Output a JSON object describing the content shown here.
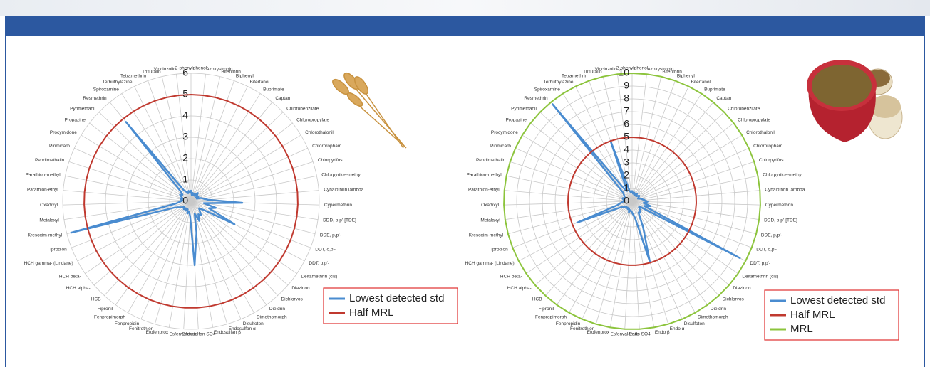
{
  "chart_data": [
    {
      "type": "radar",
      "categories": [
        "2-phenylphenol",
        "Azoxystrobin",
        "Bifenthrin",
        "Biphenyl",
        "Bitertanol",
        "Buprimate",
        "Captan",
        "Chlorobenzilate",
        "Chloropropylate",
        "Chlorothalonil",
        "Chlorpropham",
        "Chlorpyrifos",
        "Chlorpyrifos-methyl",
        "Cyhalothrin lambda",
        "Cypermethrin",
        "DDD, p,p'-[TDE]",
        "DDE, p,p'-",
        "DDT, o,p'-",
        "DDT, p,p'-",
        "Deltamethrin (cis)",
        "Diazinon",
        "Dichlorvos",
        "Dieldrin",
        "Dimethomorph",
        "Disulfoton",
        "Endosulfan α",
        "Endosulfan β",
        "Endosulfan SO4",
        "Esfenvalerate",
        "Etofenprox",
        "Fenitrothion",
        "Fenpropidin",
        "Fenpropimorph",
        "Fipronil",
        "HCB",
        "HCH alpha-",
        "HCH beta-",
        "HCH gamma- (Lindane)",
        "Iprodion",
        "Kresoxim-methyl",
        "Metalaxyl",
        "Oxadixyl",
        "Parathion-ethyl",
        "Parathion-methyl",
        "Pendimethalin",
        "Pirimicarb",
        "Procymidone",
        "Propazine",
        "Pyrimethanil",
        "Resmethrin",
        "Spiroxamine",
        "Terbuthylazine",
        "Tetramethrin",
        "Trifluralin",
        "Vinclozolin"
      ],
      "series": [
        {
          "name": "Lowest detected std",
          "color": "#4a8cd0",
          "values": [
            0.5,
            0.3,
            0.4,
            0.3,
            0.4,
            0.3,
            0.5,
            0.4,
            0.3,
            0.4,
            0.3,
            0.5,
            0.6,
            0.8,
            2.4,
            0.6,
            1.2,
            0.9,
            2.3,
            0.7,
            0.5,
            0.6,
            0.8,
            0.7,
            1.0,
            0.6,
            1.5,
            3.0,
            0.7,
            0.5,
            0.6,
            0.4,
            0.5,
            0.4,
            0.5,
            0.4,
            0.5,
            0.6,
            0.8,
            5.8,
            0.7,
            0.5,
            0.4,
            0.5,
            0.4,
            0.5,
            0.6,
            0.5,
            0.7,
            4.8,
            0.6,
            0.5,
            0.4,
            0.5,
            0.4
          ]
        },
        {
          "name": "Half MRL",
          "color": "#c0392f",
          "values": [
            5,
            5,
            5,
            5,
            5,
            5,
            5,
            5,
            5,
            5,
            5,
            5,
            5,
            5,
            5,
            5,
            5,
            5,
            5,
            5,
            5,
            5,
            5,
            5,
            5,
            5,
            5,
            5,
            5,
            5,
            5,
            5,
            5,
            5,
            5,
            5,
            5,
            5,
            5,
            5,
            5,
            5,
            5,
            5,
            5,
            5,
            5,
            5,
            5,
            5,
            5,
            5,
            5,
            5,
            5
          ]
        }
      ],
      "rlim": [
        0,
        6
      ],
      "rticks": [
        0,
        1,
        2,
        3,
        4,
        5,
        6
      ],
      "legend": "lower-right"
    },
    {
      "type": "radar",
      "categories": [
        "2-phenylphenol",
        "Azoxystrobin",
        "Bifenthrin",
        "Biphenyl",
        "Bitertanol",
        "Buprimate",
        "Captan",
        "Chlorobenzilate",
        "Chloropropylate",
        "Chlorothalonil",
        "Chlorpropham",
        "Chlorpyrifos",
        "Chlorpyrifos-methyl",
        "Cyhalothrin lambda",
        "Cypermethrin",
        "DDD, p,p'-[TDE]",
        "DDE, p,p'-",
        "DDT, o,p'-",
        "DDT, p,p'-",
        "Deltamethrin (cis)",
        "Diazinon",
        "Dichlorvos",
        "Dieldrin",
        "Dimethomorph",
        "Disulfoton",
        "Endo α",
        "Endo β",
        "Endo SO4",
        "Esfenvalerate",
        "Etofenprox",
        "Fenitrothion",
        "Fenpropidin",
        "Fenpropimorph",
        "Fipronil",
        "HCB",
        "HCH alpha-",
        "HCH beta-",
        "HCH gamma- (Lindane)",
        "Iprodion",
        "Kresoxim-methyl",
        "Metalaxyl",
        "Oxadixyl",
        "Parathion-ethyl",
        "Parathion-methyl",
        "Pendimethalin",
        "Pirimicarb",
        "Procymidone",
        "Propazine",
        "Pyrimethanil",
        "Resmethrin",
        "Spiroxamine",
        "Terbuthylazine",
        "Tetramethrin",
        "Trifluralin",
        "Vinclozolin"
      ],
      "series": [
        {
          "name": "Lowest detected std",
          "color": "#4a8cd0",
          "values": [
            0.8,
            0.6,
            0.7,
            0.5,
            0.6,
            0.7,
            0.5,
            0.6,
            0.7,
            0.6,
            0.5,
            0.7,
            0.8,
            1.0,
            1.2,
            0.9,
            1.5,
            1.0,
            9.5,
            0.8,
            0.7,
            0.9,
            1.1,
            1.0,
            2.2,
            4.9,
            1.3,
            1.0,
            0.8,
            0.7,
            0.9,
            0.6,
            0.7,
            0.6,
            0.7,
            0.6,
            0.8,
            1.0,
            4.6,
            1.2,
            0.9,
            0.7,
            0.6,
            0.7,
            0.8,
            0.6,
            0.7,
            0.8,
            1.0,
            9.8,
            1.2,
            0.9,
            5.0,
            0.8,
            0.7
          ]
        },
        {
          "name": "Half MRL",
          "color": "#c0392f",
          "values": [
            5,
            5,
            5,
            5,
            5,
            5,
            5,
            5,
            5,
            5,
            5,
            5,
            5,
            5,
            5,
            5,
            5,
            5,
            5,
            5,
            5,
            5,
            5,
            5,
            5,
            5,
            5,
            5,
            5,
            5,
            5,
            5,
            5,
            5,
            5,
            5,
            5,
            5,
            5,
            5,
            5,
            5,
            5,
            5,
            5,
            5,
            5,
            5,
            5,
            5,
            5,
            5,
            5,
            5,
            5
          ]
        },
        {
          "name": "MRL",
          "color": "#8cc43c",
          "values": [
            10,
            10,
            10,
            10,
            10,
            10,
            10,
            10,
            10,
            10,
            10,
            10,
            10,
            10,
            10,
            10,
            10,
            10,
            10,
            10,
            10,
            10,
            10,
            10,
            10,
            10,
            10,
            10,
            10,
            10,
            10,
            10,
            10,
            10,
            10,
            10,
            10,
            10,
            10,
            10,
            10,
            10,
            10,
            10,
            10,
            10,
            10,
            10,
            10,
            10,
            10,
            10,
            10,
            10,
            10
          ]
        }
      ],
      "rlim": [
        0,
        10
      ],
      "rticks": [
        0,
        1,
        2,
        3,
        4,
        5,
        6,
        7,
        8,
        9,
        10
      ],
      "legend": "lower-right"
    }
  ]
}
